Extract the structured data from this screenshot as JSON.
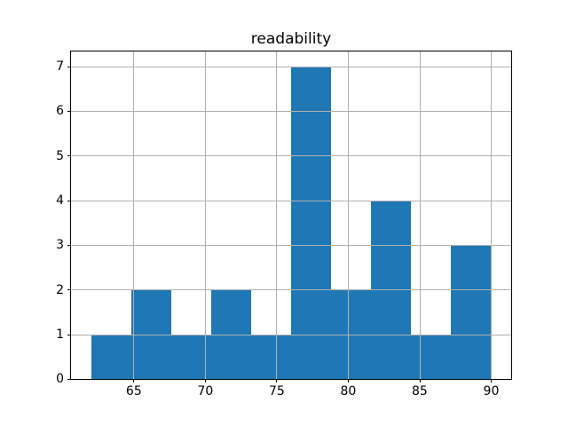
{
  "title": "readability",
  "colors": {
    "bar": "#1f77b4",
    "grid": "#b0b0b0",
    "spine": "#000000",
    "background": "#ffffff",
    "text": "#000000"
  },
  "chart_data": {
    "type": "bar",
    "subtype": "histogram",
    "title": "readability",
    "xlabel": "",
    "ylabel": "",
    "bin_edges": [
      62.0,
      64.8,
      67.6,
      70.4,
      73.2,
      76.0,
      78.8,
      81.6,
      84.4,
      87.2,
      90.0
    ],
    "counts": [
      1,
      2,
      1,
      2,
      1,
      7,
      2,
      4,
      1,
      3
    ],
    "xlim": [
      60.6,
      91.4
    ],
    "ylim": [
      0,
      7.35
    ],
    "xticks": [
      65,
      70,
      75,
      80,
      85,
      90
    ],
    "yticks": [
      0,
      1,
      2,
      3,
      4,
      5,
      6,
      7
    ],
    "xtick_labels": [
      "65",
      "70",
      "75",
      "80",
      "85",
      "90"
    ],
    "ytick_labels": [
      "0",
      "1",
      "2",
      "3",
      "4",
      "5",
      "6",
      "7"
    ],
    "grid": true,
    "grid_above_bars": true,
    "legend": "none"
  }
}
